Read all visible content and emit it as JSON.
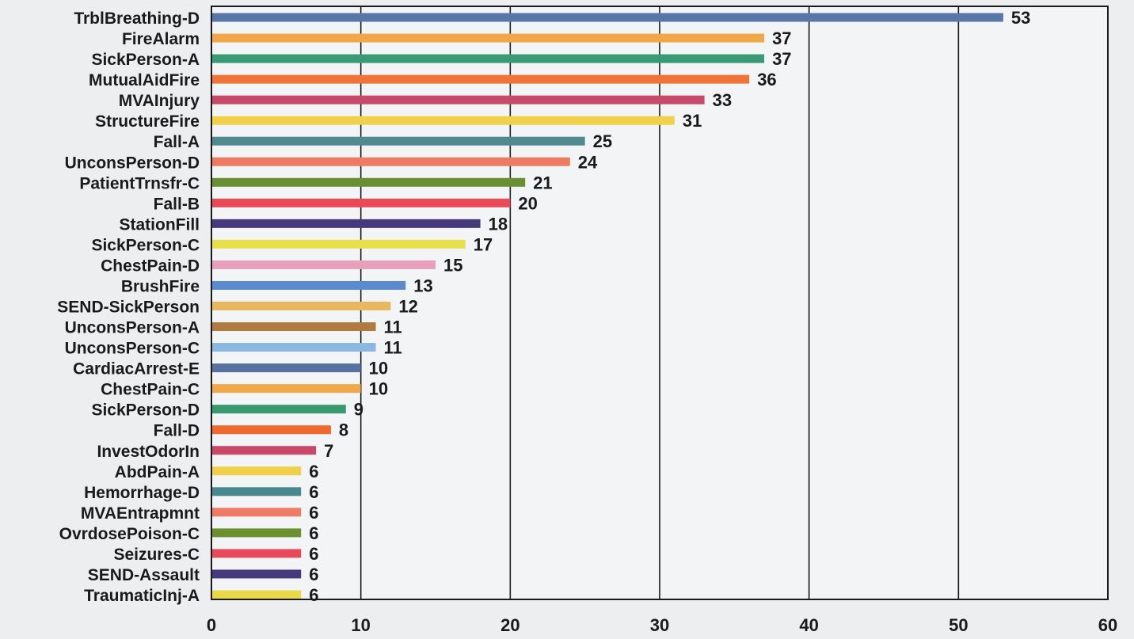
{
  "chart_data": {
    "type": "bar",
    "orientation": "horizontal",
    "title": "",
    "xlabel": "",
    "ylabel": "",
    "xlim": [
      0,
      60
    ],
    "xticks": [
      0,
      10,
      20,
      30,
      40,
      50,
      60
    ],
    "grid": "vertical",
    "legend": "none",
    "categories": [
      "TrblBreathing-D",
      "FireAlarm",
      "SickPerson-A",
      "MutualAidFire",
      "MVAInjury",
      "StructureFire",
      "Fall-A",
      "UnconsPerson-D",
      "PatientTrnsfr-C",
      "Fall-B",
      "StationFill",
      "SickPerson-C",
      "ChestPain-D",
      "BrushFire",
      "SEND-SickPerson",
      "UnconsPerson-A",
      "UnconsPerson-C",
      "CardiacArrest-E",
      "ChestPain-C",
      "SickPerson-D",
      "Fall-D",
      "InvestOdorIn",
      "AbdPain-A",
      "Hemorrhage-D",
      "MVAEntrapmnt",
      "OvrdosePoison-C",
      "Seizures-C",
      "SEND-Assault",
      "TraumaticInj-A"
    ],
    "values": [
      53,
      37,
      37,
      36,
      33,
      31,
      25,
      24,
      21,
      20,
      18,
      17,
      15,
      13,
      12,
      11,
      11,
      10,
      10,
      9,
      8,
      7,
      6,
      6,
      6,
      6,
      6,
      6,
      6
    ],
    "colors": [
      "#5877a8",
      "#f0a848",
      "#3a9a78",
      "#f0743a",
      "#c84a6a",
      "#f2d04a",
      "#4f8a90",
      "#ee7a62",
      "#6a8e32",
      "#ea4a58",
      "#46397a",
      "#e8e04a",
      "#e8a0b8",
      "#5a8ad0",
      "#e8b860",
      "#b07a40",
      "#8ab8e0",
      "#5872a0",
      "#f0a84a",
      "#3a9870",
      "#f06a30",
      "#c8486a",
      "#f0d04a",
      "#4a8890",
      "#ee7a68",
      "#6a9030",
      "#e84a5c",
      "#46397c",
      "#e8d84a"
    ]
  }
}
